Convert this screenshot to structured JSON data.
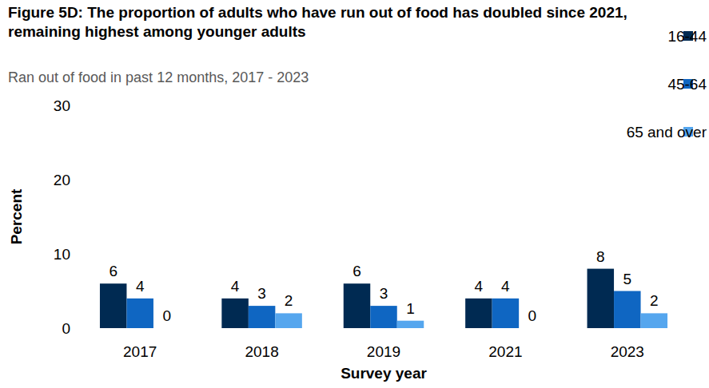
{
  "chart_data": {
    "type": "bar",
    "title": "Figure 5D: The proportion of adults who have run out of food has doubled since 2021, remaining highest among younger adults",
    "subtitle": "Ran out of food in past 12 months, 2017 - 2023",
    "x_label": "Survey year",
    "y_label": "Percent",
    "categories": [
      "2017",
      "2018",
      "2019",
      "2021",
      "2023"
    ],
    "series": [
      {
        "name": "16-44",
        "color": "#002a52",
        "values": [
          6,
          4,
          6,
          4,
          8
        ]
      },
      {
        "name": "45-64",
        "color": "#0f66c2",
        "values": [
          4,
          3,
          3,
          4,
          5
        ]
      },
      {
        "name": "65 and over",
        "color": "#55a6ee",
        "values": [
          0,
          2,
          1,
          0,
          2
        ]
      }
    ],
    "ylim": [
      0,
      30
    ],
    "yticks": [
      0,
      10,
      20,
      30
    ],
    "grid": false,
    "legend": "top-right",
    "data_labels": true
  }
}
